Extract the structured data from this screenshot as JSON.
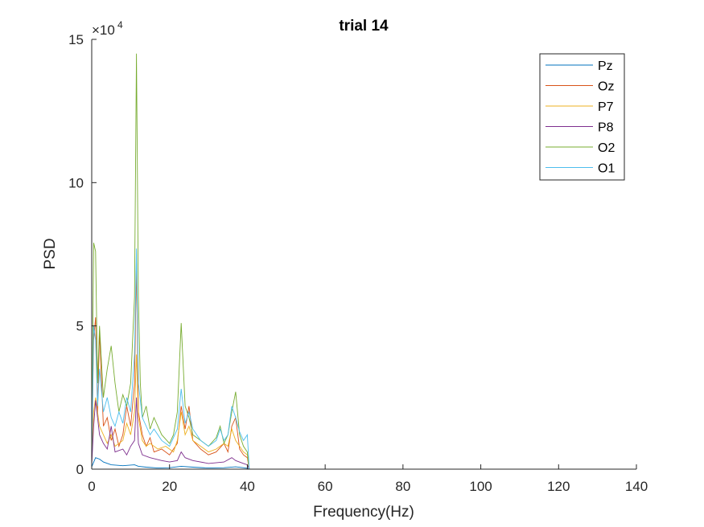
{
  "chart_data": {
    "type": "line",
    "title": "trial 14",
    "xlabel": "Frequency(Hz)",
    "ylabel": "PSD",
    "xlim": [
      0,
      140
    ],
    "ylim": [
      0,
      150000
    ],
    "y_exponent_label": "×10",
    "y_exponent_power": "4",
    "xticks": [
      0,
      20,
      40,
      60,
      80,
      100,
      120,
      140
    ],
    "xtick_labels": [
      "0",
      "20",
      "40",
      "60",
      "80",
      "100",
      "120",
      "140"
    ],
    "yticks": [
      0,
      50000,
      100000,
      150000
    ],
    "ytick_labels": [
      "0",
      "5",
      "10",
      "15"
    ],
    "grid": false,
    "legend_position": "top-right",
    "series": [
      {
        "name": "Pz",
        "color": "#0072BD",
        "points": [
          [
            0,
            800
          ],
          [
            1,
            4000
          ],
          [
            2,
            3500
          ],
          [
            3,
            2500
          ],
          [
            5,
            1500
          ],
          [
            8,
            1200
          ],
          [
            11,
            1500
          ],
          [
            12,
            1000
          ],
          [
            14,
            700
          ],
          [
            17,
            400
          ],
          [
            20,
            500
          ],
          [
            23,
            1000
          ],
          [
            26,
            700
          ],
          [
            30,
            400
          ],
          [
            34,
            500
          ],
          [
            37,
            800
          ],
          [
            39,
            500
          ],
          [
            40,
            300
          ],
          [
            40.5,
            0
          ],
          [
            60,
            0
          ],
          [
            80,
            0
          ],
          [
            100,
            0
          ],
          [
            125,
            0
          ]
        ]
      },
      {
        "name": "Oz",
        "color": "#D95319",
        "points": [
          [
            0,
            3000
          ],
          [
            0.5,
            45000
          ],
          [
            1,
            53000
          ],
          [
            1.5,
            20000
          ],
          [
            2,
            48000
          ],
          [
            3,
            15000
          ],
          [
            4,
            18000
          ],
          [
            5,
            10000
          ],
          [
            6,
            14000
          ],
          [
            7,
            8000
          ],
          [
            8,
            12000
          ],
          [
            9,
            22000
          ],
          [
            10,
            15000
          ],
          [
            11,
            30000
          ],
          [
            11.5,
            72000
          ],
          [
            12,
            20000
          ],
          [
            13,
            12000
          ],
          [
            14,
            8000
          ],
          [
            15,
            11000
          ],
          [
            16,
            6000
          ],
          [
            18,
            7000
          ],
          [
            20,
            5000
          ],
          [
            22,
            9000
          ],
          [
            23,
            22000
          ],
          [
            24,
            14000
          ],
          [
            25,
            22000
          ],
          [
            26,
            10000
          ],
          [
            28,
            7000
          ],
          [
            30,
            5000
          ],
          [
            32,
            6000
          ],
          [
            34,
            9000
          ],
          [
            35,
            6000
          ],
          [
            36,
            15000
          ],
          [
            37,
            18000
          ],
          [
            38,
            7000
          ],
          [
            39,
            5000
          ],
          [
            40,
            4000
          ],
          [
            40.5,
            0
          ],
          [
            60,
            0
          ],
          [
            80,
            0
          ],
          [
            100,
            0
          ],
          [
            125,
            0
          ]
        ]
      },
      {
        "name": "P7",
        "color": "#EDB120",
        "points": [
          [
            0,
            2000
          ],
          [
            0.5,
            20000
          ],
          [
            1,
            25000
          ],
          [
            2,
            15000
          ],
          [
            3,
            12000
          ],
          [
            4,
            9000
          ],
          [
            5,
            12000
          ],
          [
            6,
            8000
          ],
          [
            8,
            10000
          ],
          [
            9,
            16000
          ],
          [
            10,
            12000
          ],
          [
            11,
            20000
          ],
          [
            11.5,
            40000
          ],
          [
            12,
            18000
          ],
          [
            13,
            10000
          ],
          [
            14,
            8000
          ],
          [
            15,
            9000
          ],
          [
            17,
            7000
          ],
          [
            19,
            8000
          ],
          [
            21,
            6000
          ],
          [
            22,
            10000
          ],
          [
            23,
            20000
          ],
          [
            24,
            12000
          ],
          [
            25,
            15000
          ],
          [
            26,
            10000
          ],
          [
            28,
            8000
          ],
          [
            30,
            6000
          ],
          [
            32,
            7000
          ],
          [
            34,
            9000
          ],
          [
            35,
            8000
          ],
          [
            36,
            14000
          ],
          [
            37,
            10000
          ],
          [
            38,
            8000
          ],
          [
            39,
            6000
          ],
          [
            40,
            5000
          ],
          [
            40.5,
            0
          ],
          [
            60,
            0
          ],
          [
            80,
            0
          ],
          [
            100,
            0
          ],
          [
            125,
            0
          ]
        ]
      },
      {
        "name": "P8",
        "color": "#7E2F8E",
        "points": [
          [
            0,
            1500
          ],
          [
            0.5,
            15000
          ],
          [
            1,
            24000
          ],
          [
            2,
            12000
          ],
          [
            3,
            9000
          ],
          [
            4,
            7000
          ],
          [
            5,
            15000
          ],
          [
            6,
            6000
          ],
          [
            8,
            7000
          ],
          [
            9,
            5000
          ],
          [
            10,
            8000
          ],
          [
            11,
            10000
          ],
          [
            11.5,
            25000
          ],
          [
            12,
            9000
          ],
          [
            13,
            5000
          ],
          [
            15,
            4000
          ],
          [
            18,
            3000
          ],
          [
            20,
            2500
          ],
          [
            22,
            3000
          ],
          [
            23,
            6000
          ],
          [
            24,
            4000
          ],
          [
            26,
            3000
          ],
          [
            30,
            2000
          ],
          [
            34,
            2500
          ],
          [
            36,
            4000
          ],
          [
            37,
            3000
          ],
          [
            39,
            2000
          ],
          [
            40,
            1500
          ],
          [
            40.5,
            0
          ],
          [
            60,
            0
          ],
          [
            80,
            0
          ],
          [
            100,
            0
          ],
          [
            125,
            0
          ]
        ]
      },
      {
        "name": "O2",
        "color": "#77AC30",
        "points": [
          [
            0,
            5000
          ],
          [
            0.5,
            79000
          ],
          [
            1,
            76000
          ],
          [
            1.5,
            30000
          ],
          [
            2,
            50000
          ],
          [
            3,
            25000
          ],
          [
            4,
            35000
          ],
          [
            5,
            43000
          ],
          [
            6,
            30000
          ],
          [
            7,
            20000
          ],
          [
            8,
            26000
          ],
          [
            9,
            22000
          ],
          [
            10,
            30000
          ],
          [
            11,
            60000
          ],
          [
            11.5,
            145000
          ],
          [
            12,
            60000
          ],
          [
            12.5,
            30000
          ],
          [
            13,
            18000
          ],
          [
            14,
            22000
          ],
          [
            15,
            14000
          ],
          [
            16,
            18000
          ],
          [
            18,
            12000
          ],
          [
            20,
            9000
          ],
          [
            21,
            12000
          ],
          [
            22,
            20000
          ],
          [
            23,
            51000
          ],
          [
            24,
            22000
          ],
          [
            25,
            18000
          ],
          [
            26,
            12000
          ],
          [
            28,
            10000
          ],
          [
            30,
            8000
          ],
          [
            32,
            11000
          ],
          [
            33,
            15000
          ],
          [
            34,
            9000
          ],
          [
            35,
            12000
          ],
          [
            36,
            20000
          ],
          [
            37,
            27000
          ],
          [
            38,
            12000
          ],
          [
            39,
            8000
          ],
          [
            40,
            6000
          ],
          [
            40.5,
            0
          ],
          [
            60,
            0
          ],
          [
            80,
            0
          ],
          [
            100,
            0
          ],
          [
            125,
            0
          ]
        ]
      },
      {
        "name": "O1",
        "color": "#4DBEEE",
        "points": [
          [
            0,
            4000
          ],
          [
            0.5,
            50000
          ],
          [
            1,
            45000
          ],
          [
            1.5,
            22000
          ],
          [
            2,
            35000
          ],
          [
            3,
            20000
          ],
          [
            4,
            25000
          ],
          [
            5,
            18000
          ],
          [
            6,
            15000
          ],
          [
            7,
            20000
          ],
          [
            8,
            16000
          ],
          [
            9,
            25000
          ],
          [
            10,
            20000
          ],
          [
            11,
            40000
          ],
          [
            11.5,
            77000
          ],
          [
            12,
            30000
          ],
          [
            13,
            18000
          ],
          [
            14,
            15000
          ],
          [
            15,
            12000
          ],
          [
            16,
            14000
          ],
          [
            18,
            10000
          ],
          [
            20,
            8000
          ],
          [
            22,
            14000
          ],
          [
            23,
            28000
          ],
          [
            24,
            16000
          ],
          [
            25,
            20000
          ],
          [
            26,
            14000
          ],
          [
            28,
            10000
          ],
          [
            30,
            8000
          ],
          [
            32,
            10000
          ],
          [
            33,
            14000
          ],
          [
            34,
            10000
          ],
          [
            35,
            12000
          ],
          [
            36,
            22000
          ],
          [
            37,
            18000
          ],
          [
            38,
            13000
          ],
          [
            39,
            10000
          ],
          [
            40,
            12000
          ],
          [
            40.5,
            0
          ],
          [
            60,
            0
          ],
          [
            80,
            0
          ],
          [
            100,
            0
          ],
          [
            125,
            0
          ]
        ]
      }
    ]
  }
}
